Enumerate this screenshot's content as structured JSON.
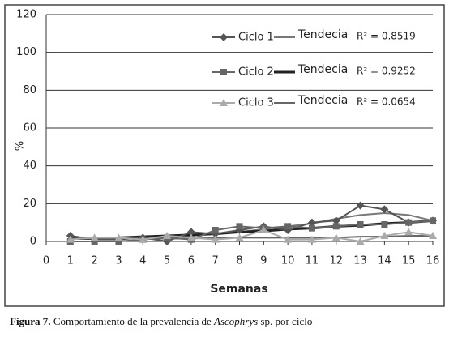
{
  "chart_data": {
    "type": "line",
    "y_label": "%",
    "x_label": "Semanas",
    "x": [
      1,
      2,
      3,
      4,
      5,
      6,
      7,
      8,
      9,
      10,
      11,
      12,
      13,
      14,
      15,
      16
    ],
    "xlim": [
      0,
      16
    ],
    "xticks": [
      0,
      1,
      2,
      3,
      4,
      5,
      6,
      7,
      8,
      9,
      10,
      11,
      12,
      13,
      14,
      15,
      16
    ],
    "ylim": [
      0,
      120
    ],
    "yticks": [
      0,
      20,
      40,
      60,
      80,
      100,
      120
    ],
    "grid": true,
    "series": [
      {
        "name": "Ciclo 1",
        "color": "#555555",
        "marker": "diamond",
        "values": [
          3,
          1,
          1,
          2,
          0,
          5,
          4,
          6,
          8,
          6,
          10,
          11,
          19,
          17,
          10,
          11
        ]
      },
      {
        "name": "Ciclo 2",
        "color": "#666666",
        "marker": "square",
        "values": [
          0,
          0,
          0,
          1,
          2,
          1,
          6,
          8,
          7,
          8,
          7,
          8,
          9,
          9,
          10,
          11
        ]
      },
      {
        "name": "Ciclo 3",
        "color": "#aaaaaa",
        "marker": "triangle",
        "values": [
          1,
          2,
          2,
          1,
          3,
          2,
          1,
          2,
          6,
          1,
          1,
          2,
          0,
          3,
          5,
          3
        ]
      }
    ],
    "trends": [
      {
        "name": "Tendecia",
        "r2_label": "R² = 0.8519",
        "color": "#777777",
        "width": 2,
        "values": [
          2,
          1.5,
          1.5,
          2,
          2.5,
          3,
          4,
          5,
          6.5,
          8,
          9.5,
          12,
          14,
          15,
          14,
          11
        ]
      },
      {
        "name": "Tendecia",
        "r2_label": "R² = 0.9252",
        "color": "#222222",
        "width": 3,
        "values": [
          1.5,
          1.5,
          2,
          2.5,
          3,
          3.5,
          4,
          5,
          5.5,
          6.5,
          7,
          8,
          8.5,
          9.5,
          10,
          11
        ]
      },
      {
        "name": "Tendecia",
        "r2_label": "R² = 0.0654",
        "color": "#666666",
        "width": 2,
        "values": [
          1.5,
          1.5,
          1.5,
          1.5,
          1.5,
          1.5,
          2,
          2,
          2,
          2,
          2,
          2,
          2.5,
          2.5,
          3,
          3
        ]
      }
    ]
  },
  "caption": {
    "label": "Figura 7.",
    "text_before": " Comportamiento de la prevalencia de ",
    "species": "Ascophrys",
    "text_after": " sp. por ciclo"
  }
}
